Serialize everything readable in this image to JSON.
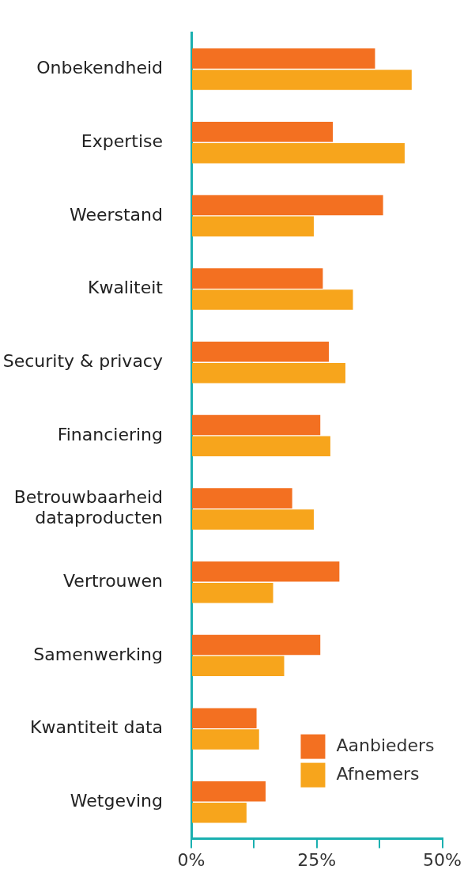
{
  "chart_data": {
    "type": "bar",
    "orientation": "horizontal",
    "categories": [
      "Onbekendheid",
      "Expertise",
      "Weerstand",
      "Kwaliteit",
      "Security & privacy",
      "Financiering",
      "Betrouwbaarheid dataproducten",
      "Vertrouwen",
      "Samenwerking",
      "Kwantiteit data",
      "Wetgeving"
    ],
    "series": [
      {
        "name": "Aanbieders",
        "color": "#f37021",
        "values": [
          36.6,
          28.2,
          38.2,
          26.2,
          27.4,
          25.7,
          20.1,
          29.5,
          25.7,
          13.0,
          14.8
        ]
      },
      {
        "name": "Afnemers",
        "color": "#f7a51c",
        "values": [
          43.9,
          42.5,
          24.4,
          32.2,
          30.7,
          27.7,
          24.4,
          16.3,
          18.5,
          13.5,
          11.0
        ]
      }
    ],
    "xlim": [
      0,
      50
    ],
    "xticks": [
      {
        "value": 0,
        "label": "0%"
      },
      {
        "value": 12.5,
        "label": null
      },
      {
        "value": 25,
        "label": "25%"
      },
      {
        "value": 37.5,
        "label": null
      },
      {
        "value": 50,
        "label": "50%"
      }
    ],
    "grid": false,
    "legend": "bottom right"
  }
}
